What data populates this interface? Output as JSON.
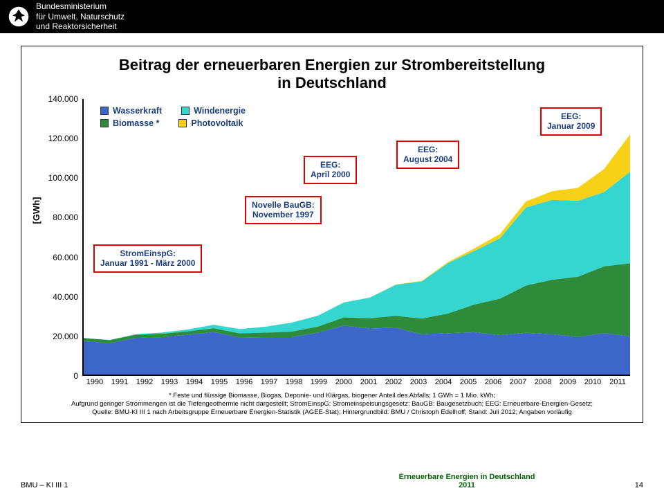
{
  "header": {
    "ministry_line1": "Bundesministerium",
    "ministry_line2": "für Umwelt, Naturschutz",
    "ministry_line3": "und Reaktorsicherheit"
  },
  "title": "Beitrag der erneuerbaren Energien zur Strombereitstellung\nin Deutschland",
  "y_axis_label": "[GWh]",
  "chart": {
    "type": "stacked-area",
    "x_categories": [
      "1990",
      "1991",
      "1992",
      "1993",
      "1994",
      "1995",
      "1996",
      "1997",
      "1998",
      "1999",
      "2000",
      "2001",
      "2002",
      "2003",
      "2004",
      "2005",
      "2006",
      "2007",
      "2008",
      "2009",
      "2010",
      "2011"
    ],
    "ylim": [
      0,
      140000
    ],
    "y_ticks": [
      "0",
      "20.000",
      "40.000",
      "60.000",
      "80.000",
      "100.000",
      "120.000",
      "140.000"
    ],
    "series": [
      {
        "name": "Wasserkraft",
        "color": "#3d66c9",
        "values": [
          17000,
          15900,
          18600,
          19000,
          20200,
          21600,
          18800,
          19000,
          19000,
          21300,
          24900,
          23400,
          23800,
          20400,
          21000,
          21500,
          20000,
          21200,
          20500,
          19100,
          21000,
          19500
        ]
      },
      {
        "name": "Biomasse *",
        "color": "#2e8b3a",
        "values": [
          1500,
          1550,
          1600,
          1650,
          1750,
          1900,
          2100,
          2300,
          2800,
          3000,
          4100,
          5200,
          6000,
          8000,
          10000,
          14000,
          18500,
          24000,
          27600,
          30600,
          33900,
          37000
        ]
      },
      {
        "name": "Windenergie",
        "color": "#35d6d0",
        "values": [
          100,
          150,
          300,
          670,
          940,
          1800,
          2200,
          3000,
          4600,
          5600,
          7600,
          10500,
          15800,
          18900,
          25600,
          27200,
          30700,
          39700,
          40600,
          38600,
          37800,
          46500
        ]
      },
      {
        "name": "Photovoltaik",
        "color": "#f7d117",
        "values": [
          1,
          2,
          3,
          6,
          8,
          11,
          16,
          26,
          32,
          42,
          64,
          76,
          162,
          313,
          557,
          1282,
          2220,
          3075,
          4420,
          6583,
          11729,
          19000
        ]
      }
    ],
    "background_color": "#ffffff",
    "axis_color": "#000000",
    "line_width": 1,
    "label_fontsize": 12,
    "title_fontsize": 22
  },
  "legend": {
    "items": [
      {
        "label": "Wasserkraft",
        "color": "#3d66c9"
      },
      {
        "label": "Windenergie",
        "color": "#35d6d0"
      },
      {
        "label": "Biomasse *",
        "color": "#2e8b3a"
      },
      {
        "label": "Photovoltaik",
        "color": "#f7d117"
      }
    ]
  },
  "callouts": [
    {
      "id": "stromeinspg",
      "text_line1": "StromEinspG:",
      "text_line2": "Januar 1991 - März 2000"
    },
    {
      "id": "novelle",
      "text_line1": "Novelle BauGB:",
      "text_line2": "November 1997"
    },
    {
      "id": "eeg2000",
      "text_line1": "EEG:",
      "text_line2": "April 2000"
    },
    {
      "id": "eeg2004",
      "text_line1": "EEG:",
      "text_line2": "August  2004"
    },
    {
      "id": "eeg2009",
      "text_line1": "EEG:",
      "text_line2": "Januar 2009"
    }
  ],
  "footnote": "* Feste und flüssige Biomasse, Biogas, Deponie- und Klärgas, biogener Anteil des Abfalls; 1 GWh = 1 Mio. kWh;\nAufgrund geringer Strommengen ist die Tiefengeothermie nicht dargestellt; StromEinspG: Stromeinspeisungsgesetz; BauGB: Baugesetzbuch; EEG: Erneuerbare-Energien-Gesetz;\nQuelle: BMU-KI III 1 nach Arbeitsgruppe Erneuerbare Energien-Statistik (AGEE-Stat); Hintergrundbild: BMU / Christoph Edelhoff; Stand: Juli 2012; Angaben vorläufig",
  "footer": {
    "left": "BMU – KI III 1",
    "center_line1": "Erneuerbare Energien in Deutschland",
    "center_line2": "2011",
    "page": "14"
  },
  "colors": {
    "callout_border": "#d00000",
    "callout_text": "#1a3d7c",
    "footer_center": "#006400"
  }
}
